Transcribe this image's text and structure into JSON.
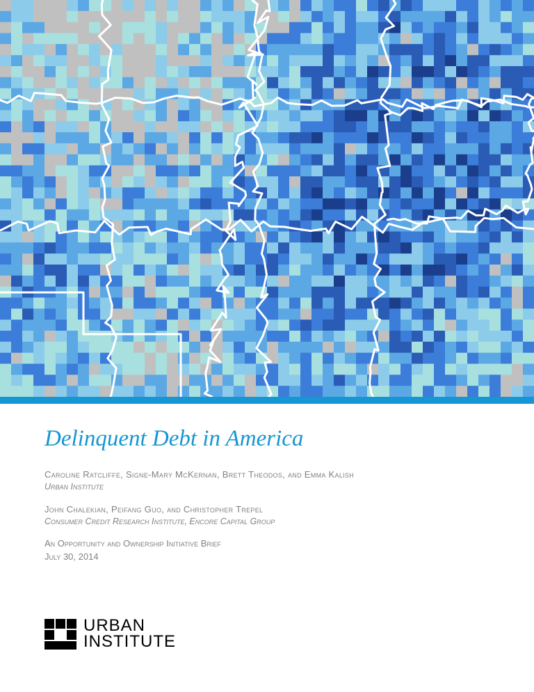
{
  "title": "Delinquent Debt in America",
  "title_color": "#1696d2",
  "accent_bar_color": "#1696d2",
  "author_group_1": {
    "authors": "Caroline Ratcliffe, Signe-Mary McKernan, Brett Theodos, and Emma Kalish",
    "affiliation": "Urban Institute"
  },
  "author_group_2": {
    "authors": "John Chalekian, Peifang Guo, and Christopher Trepel",
    "affiliation": "Consumer Credit Research Institute, Encore Capital Group"
  },
  "brief": {
    "series": "An Opportunity and Ownership Initiative Brief",
    "date": "July 30, 2014"
  },
  "logo": {
    "line1": "URBAN",
    "line2": "INSTITUTE"
  },
  "map": {
    "type": "choropleth",
    "description": "County-level choropleth of central US states (KS, OK, MO, AR, IL, KY, TN, MS, AL, LA, TX panhandle region) with white state borders",
    "palette": [
      "#1a3e8c",
      "#2a5bb5",
      "#3b7dd8",
      "#5ba8e5",
      "#8cccea",
      "#a8e0e0",
      "#c0c0c0"
    ],
    "state_border_color": "#ffffff",
    "state_border_width": 3,
    "background": "#ffffff",
    "grid_cols": 48,
    "grid_rows": 36
  },
  "text_color_muted": "#808080"
}
